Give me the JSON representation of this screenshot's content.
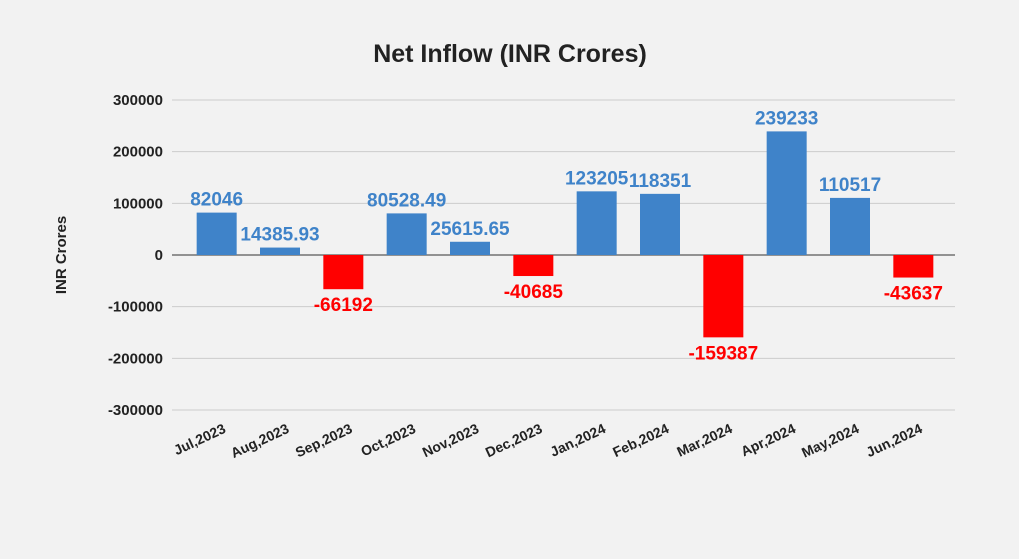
{
  "chart_data": {
    "type": "bar",
    "title": "Net Inflow (INR Crores)",
    "y_label": "INR Crores",
    "categories": [
      "Jul,2023",
      "Aug,2023",
      "Sep,2023",
      "Oct,2023",
      "Nov,2023",
      "Dec,2023",
      "Jan,2024",
      "Feb,2024",
      "Mar,2024",
      "Apr,2024",
      "May,2024",
      "Jun,2024"
    ],
    "values": [
      82046,
      14385.93,
      -66192,
      80528.49,
      25615.65,
      -40685,
      123205,
      118351,
      -159387,
      239233,
      110517,
      -43637
    ],
    "color": "#3f83c9",
    "negative_color": "#ff0000",
    "ylim": [
      -300000,
      300000
    ],
    "yticks": [
      -300000,
      -200000,
      -100000,
      0,
      100000,
      200000,
      300000
    ],
    "grid": true
  }
}
